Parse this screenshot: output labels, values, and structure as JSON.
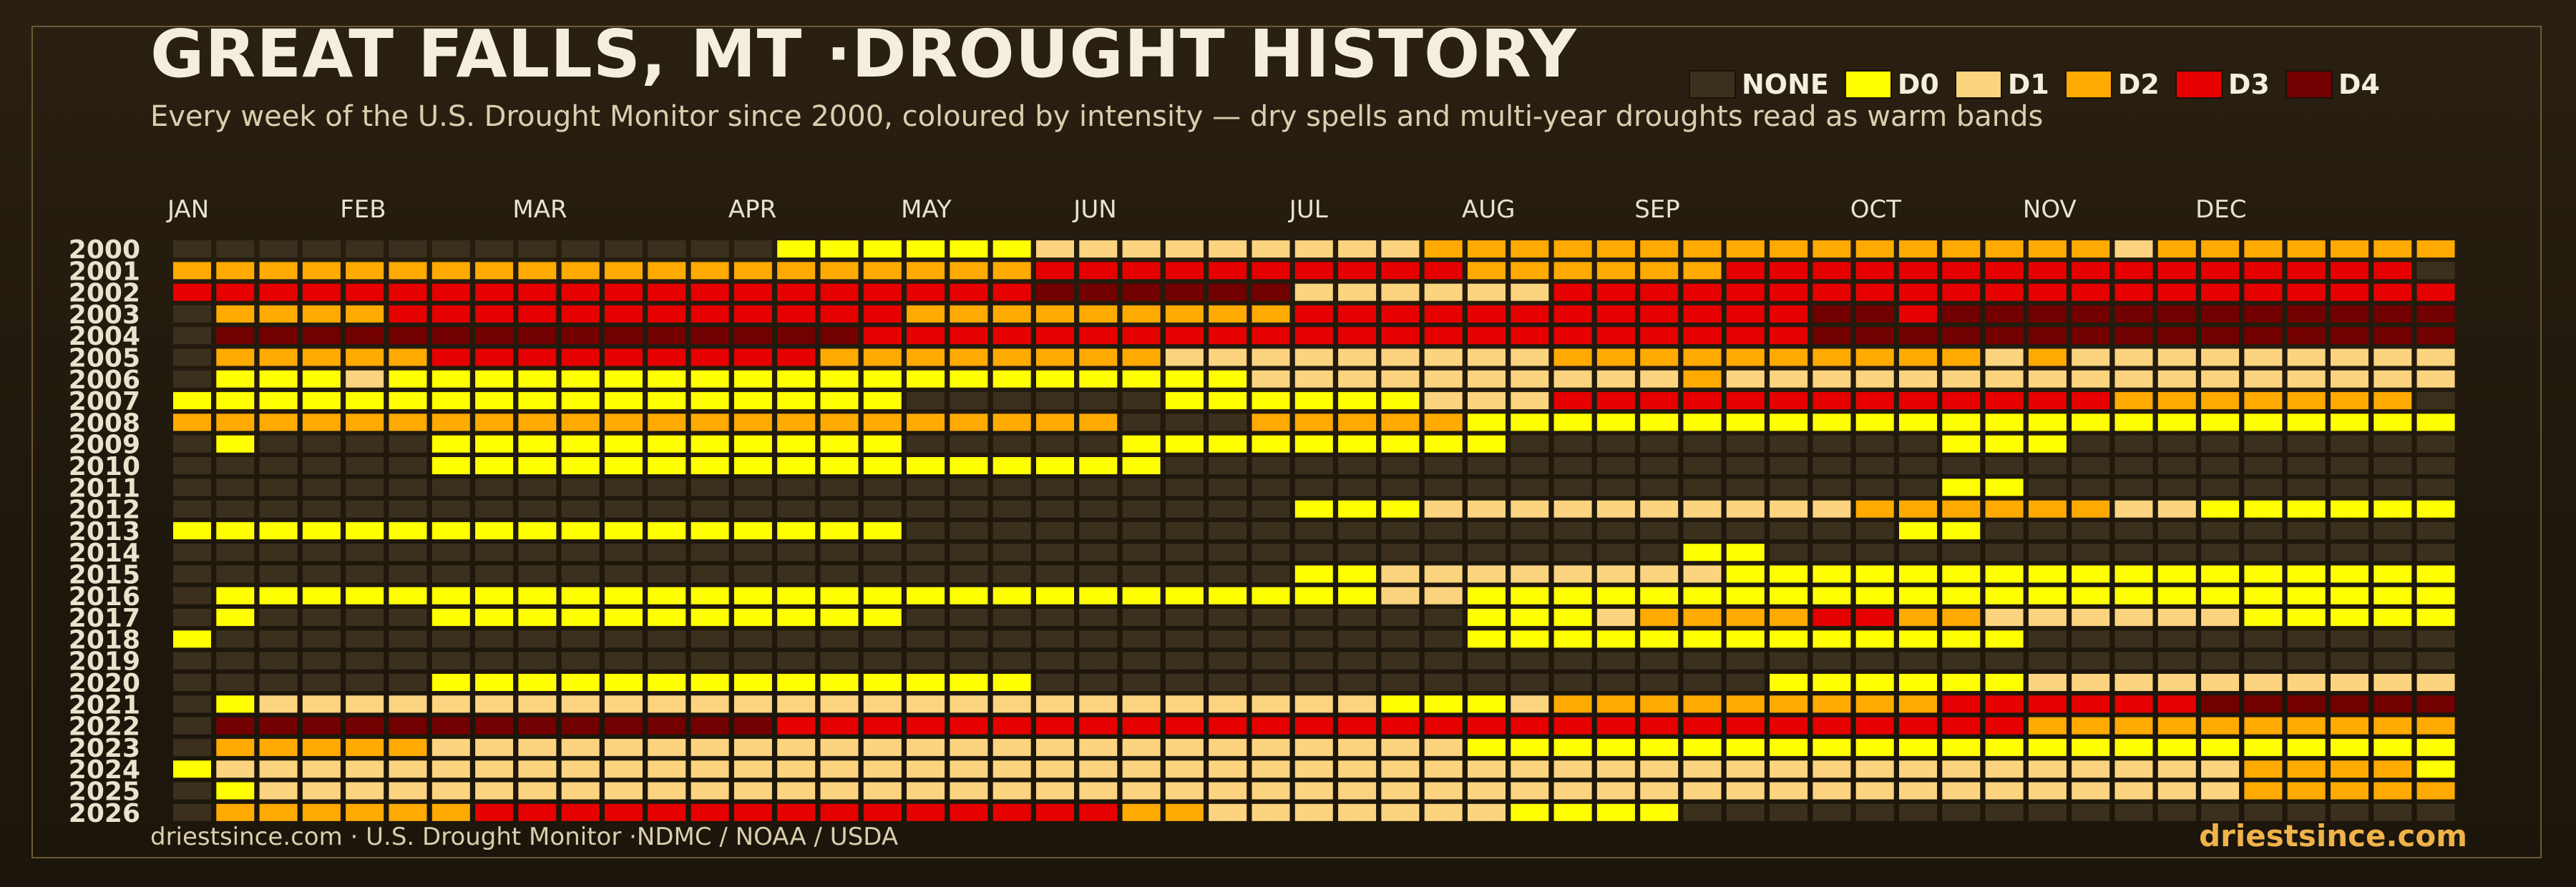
{
  "header": {
    "title": "GREAT FALLS, MT ·DROUGHT HISTORY",
    "subtitle": "Every week of the U.S. Drought Monitor since 2000, coloured by intensity — dry spells and multi-year droughts read as warm bands"
  },
  "legend": [
    {
      "label": "NONE",
      "color": "#3b301d"
    },
    {
      "label": "D0",
      "color": "#ffff00"
    },
    {
      "label": "D1",
      "color": "#fcd37f"
    },
    {
      "label": "D2",
      "color": "#ffaa00"
    },
    {
      "label": "D3",
      "color": "#e60000"
    },
    {
      "label": "D4",
      "color": "#730000"
    }
  ],
  "footer": {
    "source": "driestsince.com  · U.S. Drought Monitor ·NDMC / NOAA / USDA",
    "brand": "driestsince.com"
  },
  "chart_data": {
    "type": "heatmap",
    "title": "GREAT FALLS, MT ·DROUGHT HISTORY",
    "x_labels": [
      {
        "label": "JAN",
        "week": 0
      },
      {
        "label": "FEB",
        "week": 4
      },
      {
        "label": "MAR",
        "week": 8
      },
      {
        "label": "APR",
        "week": 13
      },
      {
        "label": "MAY",
        "week": 17
      },
      {
        "label": "JUN",
        "week": 21
      },
      {
        "label": "JUL",
        "week": 26
      },
      {
        "label": "AUG",
        "week": 30
      },
      {
        "label": "SEP",
        "week": 34
      },
      {
        "label": "OCT",
        "week": 39
      },
      {
        "label": "NOV",
        "week": 43
      },
      {
        "label": "DEC",
        "week": 47
      }
    ],
    "weeks_per_year": 53,
    "scale": {
      "0": "NONE",
      "1": "D0",
      "2": "D1",
      "3": "D2",
      "4": "D3",
      "5": "D4"
    },
    "years": [
      "2000",
      "2001",
      "2002",
      "2003",
      "2004",
      "2005",
      "2006",
      "2007",
      "2008",
      "2009",
      "2010",
      "2011",
      "2012",
      "2013",
      "2014",
      "2015",
      "2016",
      "2017",
      "2018",
      "2019",
      "2020",
      "2021",
      "2022",
      "2023",
      "2024",
      "2025",
      "2026"
    ],
    "rows": [
      "00000000000000111111222222222333333333333333323333333",
      "33333333333333333333444444444433333344444444444444440",
      "44444444444444444444555555222222444444444444444444444",
      "03333444444444444333333333444444444444554555555555555",
      "05555555555555554444444444444444444444555555555555555",
      "03333344444444433333333222222222333333333323222222222",
      "01112111111111111111111112222222222322222222222222222",
      "11111111111111111000000111111222444444444444433333330",
      "33333333333333333333330003333311111111111111111111111",
      "01000011111111111000001111111110000000000111000000000",
      "00000011111111111111111000000000000000000000000000000",
      "00000000000000000000000000000000000000000110000000000",
      "00000000000000000000000000111222222222233333322111111",
      "11111111111111111000000000000000000000001100000000000",
      "00000000000000000000000000000000000110000000000000000",
      "00000000000000000000000000112222222211111111111111111",
      "01111111111111111111111111112211111111111111111111111",
      "01000011111111111000000000000011123333443322222211111",
      "10000000000000000000000000000011111111111110000000000",
      "00000000000000000000000000000000000000000000000000000",
      "00000011111111111111000000000000000001111112222222222",
      "01222222222222222222222222221112333333333444444555555",
      "05555555555555444444444444444444444444444443333333333",
      "03333322222222222222222222222211111111111111111111111",
      "12222222222222222222222222222222222222222222222233331",
      "01222222222222222222222222222222222222222222222233333",
      "03333334444444444444443322222221111000000000000000000"
    ]
  }
}
